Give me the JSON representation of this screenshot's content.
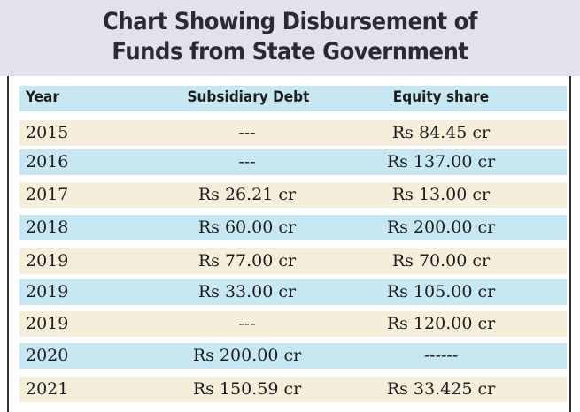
{
  "title": {
    "line1": "Chart Showing Disbursement of",
    "line2": "Funds from State Government"
  },
  "chart_data": {
    "type": "table",
    "title": "Chart Showing Disbursement of Funds from State Government",
    "columns": [
      "Year",
      "Subsidiary Debt",
      "Equity share"
    ],
    "rows": [
      [
        "2015",
        "---",
        "Rs 84.45 cr"
      ],
      [
        "2016",
        "---",
        "Rs 137.00 cr"
      ],
      [
        "2017",
        "Rs 26.21 cr",
        "Rs 13.00 cr"
      ],
      [
        "2018",
        "Rs 60.00 cr",
        "Rs 200.00 cr"
      ],
      [
        "2019",
        "Rs 77.00 cr",
        "Rs 70.00 cr"
      ],
      [
        "2019",
        "Rs 33.00 cr",
        "Rs 105.00 cr"
      ],
      [
        "2019",
        "---",
        "Rs 120.00 cr"
      ],
      [
        "2020",
        "Rs 200.00 cr",
        "------"
      ],
      [
        "2021",
        "Rs 150.59 cr",
        "Rs 33.425 cr"
      ]
    ]
  },
  "colors": {
    "title_bg": "#e4e1ef",
    "blue_row": "#c7e7f2",
    "beige_row": "#f4eedb"
  }
}
